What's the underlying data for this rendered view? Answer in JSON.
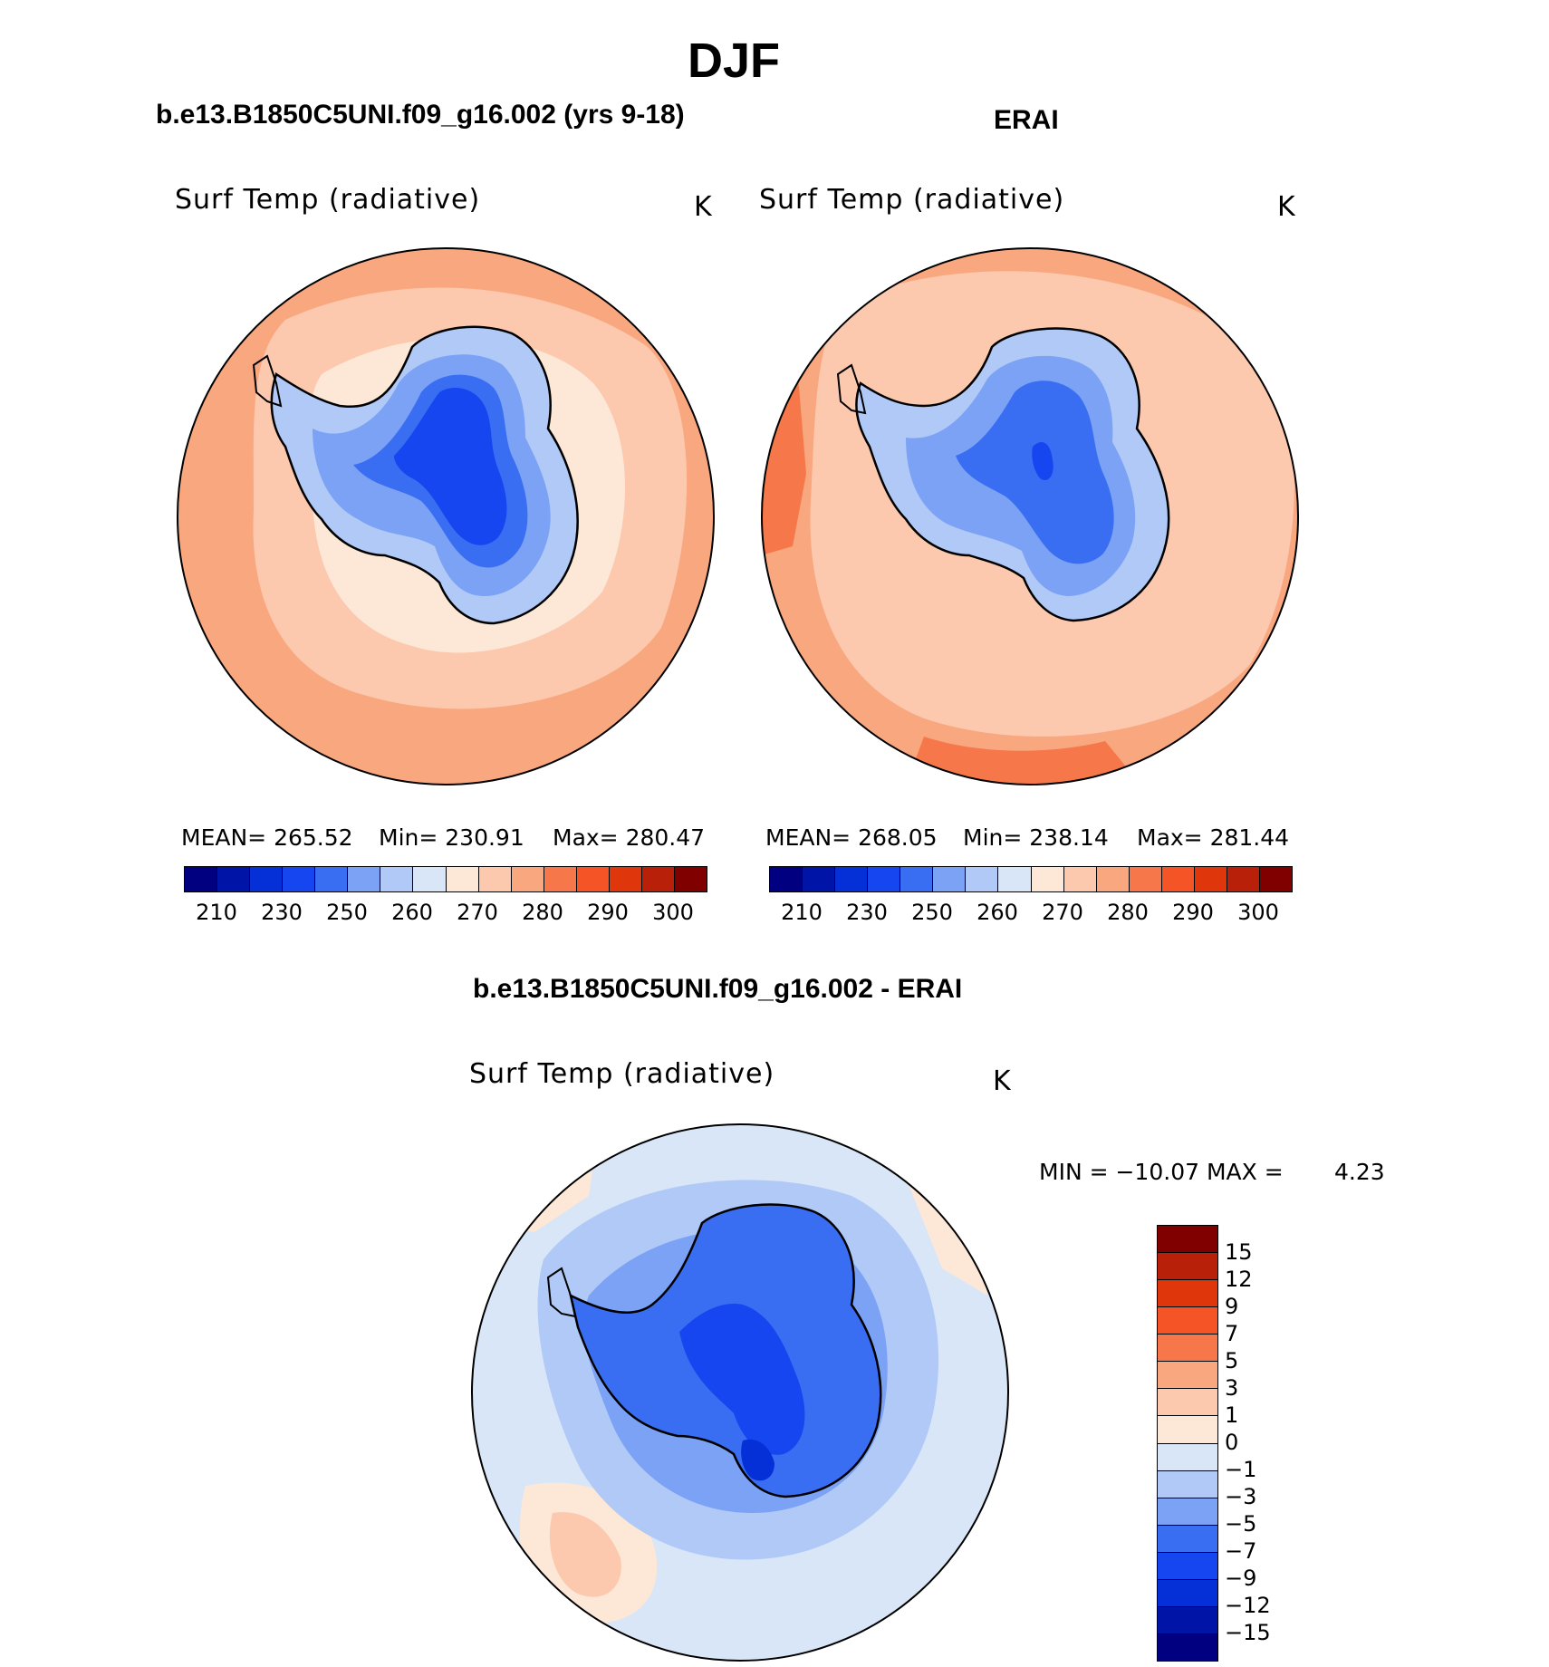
{
  "title": "DJF",
  "panels": {
    "model": {
      "header": "b.e13.B1850C5UNI.f09_g16.002 (yrs 9-18)",
      "variable": "Surf Temp (radiative)",
      "units": "K",
      "mean_label": "MEAN=",
      "mean": "265.52",
      "min_label": "Min=",
      "min": "230.91",
      "max_label": "Max=",
      "max": "280.47"
    },
    "obs": {
      "header": "ERAI",
      "variable": "Surf Temp (radiative)",
      "units": "K",
      "mean_label": "MEAN=",
      "mean": "268.05",
      "min_label": "Min=",
      "min": "238.14",
      "max_label": "Max=",
      "max": "281.44"
    },
    "diff": {
      "header": "b.e13.B1850C5UNI.f09_g16.002 - ERAI",
      "variable": "Surf Temp (radiative)",
      "units": "K",
      "minmax_text": "MIN = −10.07 MAX =",
      "max_value": "4.23"
    }
  },
  "colorbars": {
    "absolute": {
      "colors": [
        "#000080",
        "#0015a8",
        "#0530d8",
        "#1646f0",
        "#3a6ef2",
        "#7ba2f5",
        "#b0c9f7",
        "#d8e6f8",
        "#fde8d7",
        "#fcc8ae",
        "#f9a77f",
        "#f6784a",
        "#f45426",
        "#e0360c",
        "#b8200a",
        "#800000"
      ],
      "ticks": [
        "210",
        "230",
        "250",
        "260",
        "270",
        "280",
        "290",
        "300"
      ]
    },
    "difference": {
      "colors": [
        "#800000",
        "#b8200a",
        "#e0360c",
        "#f45426",
        "#f6784a",
        "#f9a77f",
        "#fcc8ae",
        "#fde8d7",
        "#d8e6f8",
        "#b0c9f7",
        "#7ba2f5",
        "#3a6ef2",
        "#1646f0",
        "#0530d8",
        "#0015a8",
        "#000080"
      ],
      "ticks": [
        "15",
        "12",
        "9",
        "7",
        "5",
        "3",
        "1",
        "0",
        "−1",
        "−3",
        "−5",
        "−7",
        "−9",
        "−12",
        "−15"
      ]
    }
  },
  "map_colors": {
    "warm_outer": "#f9a77f",
    "warm_mid": "#fcc8ae",
    "warm_light": "#fde8d7",
    "cold_light": "#d8e6f8",
    "cold_1": "#b0c9f7",
    "cold_2": "#7ba2f5",
    "cold_3": "#3a6ef2",
    "cold_4": "#1646f0",
    "cold_5": "#0530d8"
  }
}
